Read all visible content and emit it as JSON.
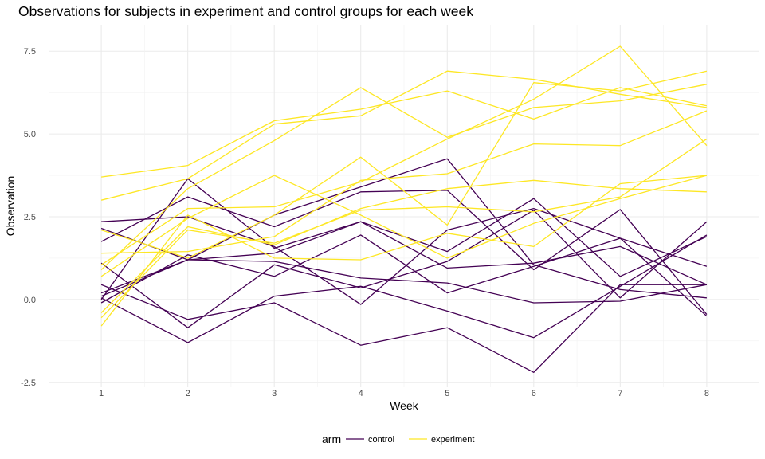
{
  "chart_data": {
    "type": "line",
    "title": "Observations for subjects in experiment and control groups for each week",
    "xlabel": "Week",
    "ylabel": "Observation",
    "x": [
      1,
      2,
      3,
      4,
      5,
      6,
      7,
      8
    ],
    "xlim": [
      0.4,
      8.6
    ],
    "ylim": [
      -2.65,
      8.3
    ],
    "x_ticks": [
      "1",
      "2",
      "3",
      "4",
      "5",
      "6",
      "7",
      "8"
    ],
    "y_ticks": [
      {
        "value": -2.5,
        "label": "-2.5"
      },
      {
        "value": 0.0,
        "label": "0.0"
      },
      {
        "value": 2.5,
        "label": "2.5"
      },
      {
        "value": 5.0,
        "label": "5.0"
      },
      {
        "value": 7.5,
        "label": "7.5"
      }
    ],
    "grid": true,
    "legend": {
      "title": "arm",
      "position": "bottom",
      "entries": [
        {
          "label": "control",
          "color": "#440154"
        },
        {
          "label": "experiment",
          "color": "#FDE725"
        }
      ]
    },
    "groups": [
      {
        "arm": "control",
        "color": "#440154",
        "subjects": [
          [
            2.35,
            2.5,
            1.6,
            -0.15,
            2.1,
            2.75,
            1.85,
            1.0
          ],
          [
            1.75,
            3.1,
            2.2,
            3.25,
            3.3,
            0.9,
            2.72,
            -0.45
          ],
          [
            2.15,
            1.2,
            1.15,
            0.65,
            0.5,
            -0.1,
            -0.05,
            0.45
          ],
          [
            1.1,
            -0.85,
            1.05,
            0.35,
            1.15,
            2.7,
            0.05,
            2.35
          ],
          [
            0.45,
            -0.6,
            -0.1,
            -1.38,
            -0.85,
            -2.2,
            0.45,
            0.45
          ],
          [
            0.2,
            1.2,
            1.4,
            2.35,
            1.45,
            3.05,
            0.7,
            1.9
          ],
          [
            0.0,
            3.65,
            1.55,
            2.35,
            0.95,
            1.1,
            1.6,
            0.45
          ],
          [
            0.1,
            1.2,
            2.55,
            3.4,
            4.25,
            1.05,
            0.3,
            0.05
          ],
          [
            -0.1,
            1.35,
            0.7,
            1.95,
            0.2,
            1.0,
            1.85,
            -0.5
          ],
          [
            0.05,
            -1.3,
            0.1,
            0.4,
            -0.35,
            -1.15,
            0.4,
            1.95
          ]
        ]
      },
      {
        "arm": "experiment",
        "color": "#FDE725",
        "subjects": [
          [
            3.7,
            4.05,
            5.4,
            5.75,
            6.3,
            5.45,
            6.4,
            5.85
          ],
          [
            3.0,
            3.65,
            5.3,
            5.55,
            6.9,
            6.65,
            6.2,
            5.8
          ],
          [
            2.1,
            1.25,
            2.55,
            4.3,
            2.25,
            6.55,
            6.3,
            6.9
          ],
          [
            1.4,
            1.45,
            1.9,
            3.6,
            3.8,
            4.7,
            4.65,
            5.7
          ],
          [
            1.05,
            2.75,
            2.8,
            3.55,
            4.85,
            6.05,
            7.65,
            4.65
          ],
          [
            0.9,
            3.35,
            4.8,
            6.4,
            4.9,
            5.8,
            6.0,
            6.5
          ],
          [
            0.7,
            2.45,
            3.75,
            2.55,
            1.25,
            2.3,
            3.05,
            3.75
          ],
          [
            -0.4,
            2.2,
            1.65,
            2.75,
            3.35,
            3.6,
            3.35,
            3.25
          ],
          [
            -0.55,
            2.1,
            1.7,
            2.7,
            2.8,
            2.65,
            3.1,
            4.85
          ],
          [
            -0.8,
            2.55,
            1.25,
            1.2,
            2.0,
            1.6,
            3.5,
            3.75
          ]
        ]
      }
    ]
  }
}
